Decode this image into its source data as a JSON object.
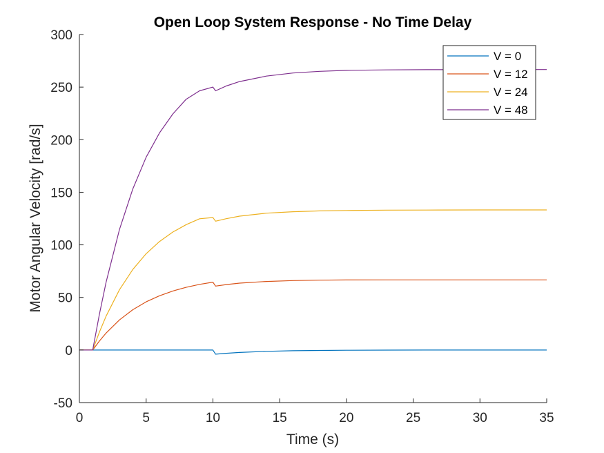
{
  "chart_data": {
    "type": "line",
    "title": "Open Loop System Response - No Time Delay",
    "xlabel": "Time (s)",
    "ylabel": "Motor Angular Velocity [rad/s]",
    "xlim": [
      0,
      35
    ],
    "ylim": [
      -50,
      300
    ],
    "xticks": [
      0,
      5,
      10,
      15,
      20,
      25,
      30,
      35
    ],
    "yticks": [
      -50,
      0,
      50,
      100,
      150,
      200,
      250,
      300
    ],
    "grid": false,
    "legend_position": "top-right",
    "series": [
      {
        "name": "V = 0",
        "color": "#0072BD",
        "x": [
          0,
          1,
          10,
          10.2,
          11,
          12,
          14,
          16,
          18,
          20,
          23,
          26,
          30,
          35
        ],
        "y": [
          0,
          0,
          0,
          -4,
          -3.1,
          -2.3,
          -1.3,
          -0.7,
          -0.4,
          -0.2,
          -0.1,
          0,
          0,
          0
        ]
      },
      {
        "name": "V = 12",
        "color": "#D95319",
        "x": [
          0,
          1,
          1.5,
          2,
          3,
          4,
          5,
          6,
          7,
          8,
          9,
          10,
          10.2,
          11,
          12,
          14,
          16,
          18,
          20,
          23,
          26,
          30,
          35
        ],
        "y": [
          0,
          0,
          8.5,
          16.1,
          28.6,
          38.3,
          45.8,
          51.6,
          56.1,
          59.6,
          62.4,
          64.5,
          60.8,
          62.2,
          63.6,
          65.2,
          66.0,
          66.4,
          66.6,
          66.7,
          66.7,
          66.7,
          66.7
        ]
      },
      {
        "name": "V = 24",
        "color": "#EDB120",
        "x": [
          0,
          1,
          1.5,
          2,
          3,
          4,
          5,
          6,
          7,
          8,
          9,
          10,
          10.2,
          11,
          12,
          14,
          16,
          18,
          20,
          23,
          26,
          30,
          35
        ],
        "y": [
          0,
          0,
          17.0,
          32.2,
          57.2,
          76.6,
          91.6,
          103.2,
          112.2,
          119.2,
          124.8,
          126.0,
          122.5,
          124.9,
          127.3,
          130.1,
          131.5,
          132.3,
          132.7,
          133.0,
          133.1,
          133.2,
          133.2
        ]
      },
      {
        "name": "V = 48",
        "color": "#7E2F8E",
        "x": [
          0,
          1,
          1.5,
          2,
          3,
          4,
          5,
          6,
          7,
          8,
          9,
          10,
          10.2,
          11,
          12,
          14,
          16,
          18,
          20,
          23,
          26,
          30,
          35
        ],
        "y": [
          0,
          0,
          34.0,
          64.5,
          114.4,
          153.2,
          183.3,
          206.5,
          224.5,
          238.5,
          246.5,
          250.0,
          246.5,
          251.1,
          255.3,
          260.5,
          263.4,
          265.0,
          265.9,
          266.4,
          266.6,
          266.7,
          266.7
        ]
      }
    ]
  }
}
